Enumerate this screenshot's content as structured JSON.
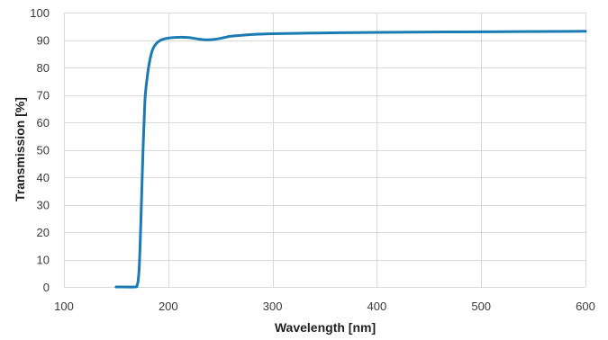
{
  "chart_data": {
    "type": "line",
    "title": "",
    "xlabel": "Wavelength [nm]",
    "ylabel": "Transmission [%]",
    "xlim": [
      100,
      600
    ],
    "ylim": [
      0,
      100
    ],
    "xticks": [
      "100",
      "200",
      "300",
      "400",
      "500",
      "600"
    ],
    "yticks": [
      "0",
      "10",
      "20",
      "30",
      "40",
      "50",
      "60",
      "70",
      "80",
      "90",
      "100"
    ],
    "grid": true,
    "legend": "none",
    "series": [
      {
        "color": "#1a7ab3",
        "x": [
          150,
          168,
          170,
          171,
          172,
          173,
          174,
          175,
          176,
          177,
          178,
          180,
          182,
          185,
          188,
          192,
          196,
          200,
          205,
          210,
          215,
          220,
          225,
          230,
          235,
          240,
          245,
          250,
          255,
          260,
          270,
          280,
          300,
          350,
          400,
          500,
          600
        ],
        "y": [
          0,
          0,
          0.5,
          2,
          6,
          15,
          27,
          40,
          52,
          62,
          70,
          77,
          82,
          86.5,
          88.5,
          89.8,
          90.4,
          90.7,
          90.9,
          91.0,
          91.0,
          90.9,
          90.6,
          90.3,
          90.1,
          90.1,
          90.3,
          90.6,
          91.0,
          91.4,
          91.7,
          92.0,
          92.3,
          92.6,
          92.8,
          93.0,
          93.2
        ]
      }
    ]
  }
}
